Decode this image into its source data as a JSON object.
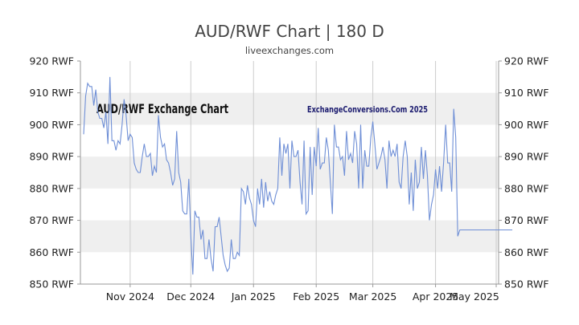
{
  "chart_data": {
    "type": "line",
    "title": "AUD/RWF Chart | 180 D",
    "subtitle": "liveexchanges.com",
    "watermarks": [
      "AUD/RWF Exchange Chart",
      "ExchangeConversions.Com 2025"
    ],
    "y_ticks": [
      "920 RWF",
      "910 RWF",
      "900 RWF",
      "890 RWF",
      "880 RWF",
      "870 RWF",
      "860 RWF",
      "850 RWF"
    ],
    "x_ticks": [
      "Nov 2024",
      "Dec 2024",
      "Jan 2025",
      "Feb 2025",
      "Mar 2025",
      "Apr 2025",
      "May 2025"
    ],
    "ylim": [
      850,
      920
    ],
    "xlim": [
      0,
      202
    ],
    "x_tick_positions": [
      23,
      53,
      84,
      115,
      143,
      174,
      204
    ],
    "grid": true,
    "colors": {
      "line": "#6f8fd6",
      "band": "#efefef",
      "grid": "#cccccc",
      "axis": "#999999"
    },
    "series": [
      {
        "values": [
          897,
          909,
          913,
          912,
          912,
          906,
          911,
          904,
          902,
          902,
          899,
          904,
          894,
          915,
          895,
          895,
          892,
          895,
          894,
          900,
          908,
          903,
          895,
          897,
          896,
          888,
          886,
          885,
          885,
          890,
          894,
          890,
          890,
          891,
          884,
          887,
          885,
          903,
          896,
          893,
          894,
          889,
          888,
          885,
          881,
          883,
          898,
          885,
          882,
          873,
          872,
          872,
          883,
          865,
          853,
          873,
          871,
          871,
          864,
          867,
          858,
          858,
          864,
          858,
          854,
          868,
          868,
          871,
          865,
          859,
          856,
          854,
          855,
          864,
          858,
          858,
          860,
          859,
          880,
          879,
          875,
          881,
          877,
          875,
          870,
          868,
          880,
          875,
          883,
          874,
          882,
          876,
          879,
          876,
          875,
          878,
          880,
          896,
          884,
          894,
          891,
          894,
          880,
          895,
          890,
          890,
          892,
          882,
          875,
          895,
          872,
          873,
          893,
          878,
          893,
          887,
          899,
          886,
          888,
          888,
          896,
          892,
          882,
          872,
          900,
          893,
          893,
          889,
          890,
          884,
          898,
          889,
          891,
          888,
          898,
          894,
          880,
          900,
          880,
          892,
          887,
          887,
          896,
          901,
          894,
          886,
          888,
          890,
          893,
          889,
          880,
          895,
          890,
          892,
          890,
          894,
          882,
          880,
          890,
          895,
          890,
          875,
          885,
          873,
          889,
          880,
          882,
          893,
          883,
          892,
          884,
          870,
          875,
          878,
          886,
          880,
          887,
          879,
          888,
          900,
          888,
          888,
          879,
          905,
          896,
          865,
          867,
          867,
          867,
          867,
          867,
          867,
          867,
          867,
          867,
          867,
          867,
          867,
          867,
          867,
          867,
          867,
          867,
          867,
          867,
          867,
          867,
          867,
          867,
          867,
          867,
          867,
          867
        ]
      }
    ]
  }
}
